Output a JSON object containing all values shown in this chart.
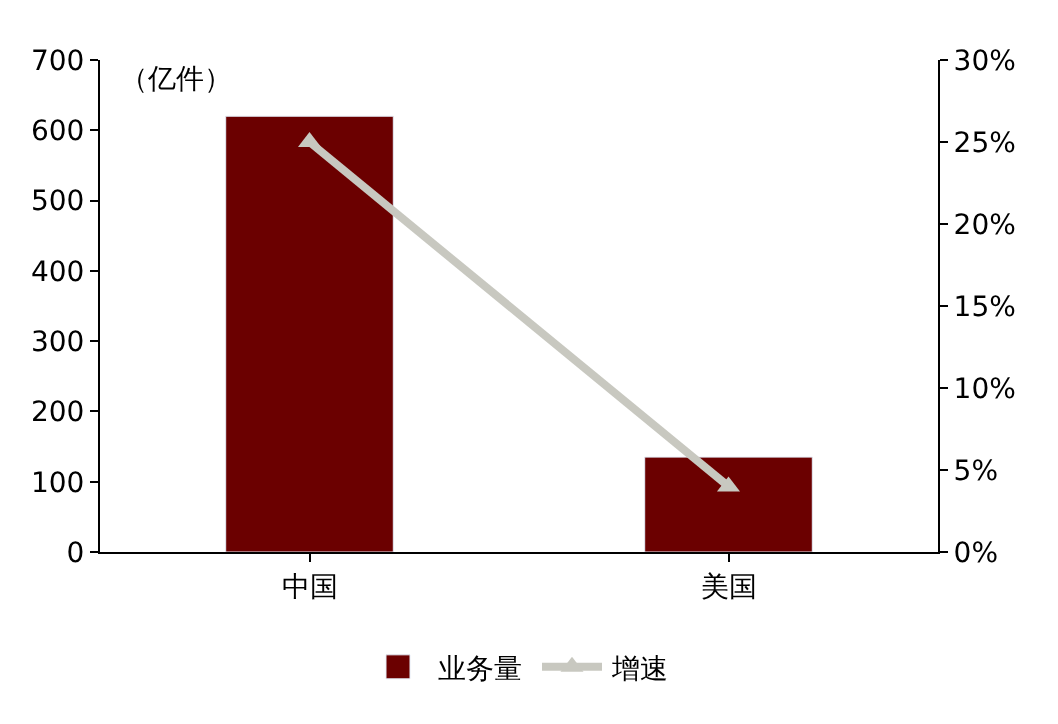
{
  "chart_data": {
    "type": "bar",
    "categories": [
      "中国",
      "美国"
    ],
    "series": [
      {
        "name": "业务量",
        "color": "#6b0000",
        "values": [
          620,
          135
        ]
      },
      {
        "name": "增速",
        "type": "line",
        "axis": "y2",
        "color": "#c8c8c0",
        "marker": "triangle",
        "values": [
          25,
          4
        ]
      }
    ],
    "annotations": [
      "（亿件）"
    ],
    "ylim": [
      0,
      700
    ],
    "yticks": [
      0,
      100,
      200,
      300,
      400,
      500,
      600,
      700
    ],
    "y2lim": [
      0,
      30
    ],
    "y2ticks": [
      {
        "value": 0,
        "label": "0%"
      },
      {
        "value": 5,
        "label": "5%"
      },
      {
        "value": 10,
        "label": "10%"
      },
      {
        "value": 15,
        "label": "15%"
      },
      {
        "value": 20,
        "label": "20%"
      },
      {
        "value": 25,
        "label": "25%"
      },
      {
        "value": 30,
        "label": "30%"
      }
    ],
    "grid": false,
    "legend": "bottom"
  }
}
